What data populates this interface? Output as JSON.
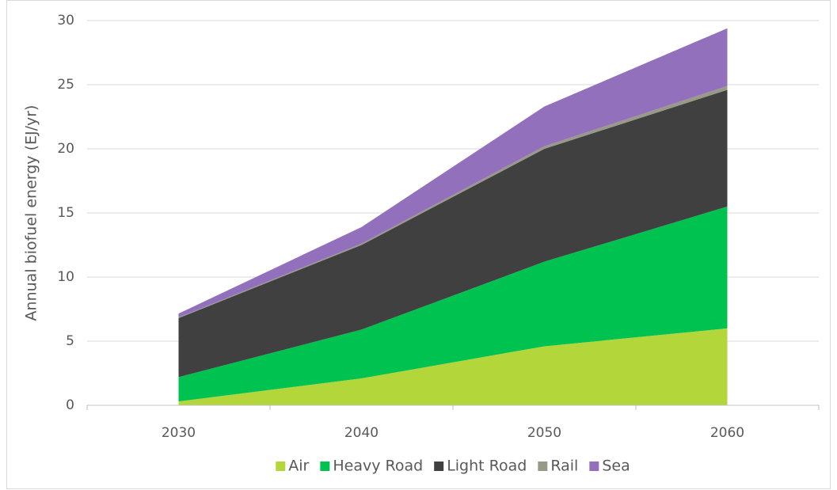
{
  "chart_data": {
    "type": "stacked_area",
    "y_label": "Annual biofuel energy (EJ/yr)",
    "categories": [
      "2030",
      "2040",
      "2050",
      "2060"
    ],
    "series": [
      {
        "name": "Air",
        "color": "#b3d63a",
        "values": [
          0.3,
          2.1,
          4.6,
          6.0
        ]
      },
      {
        "name": "Heavy Road",
        "color": "#00c250",
        "values": [
          1.9,
          3.8,
          6.6,
          9.5
        ]
      },
      {
        "name": "Light Road",
        "color": "#404040",
        "values": [
          4.6,
          6.6,
          8.8,
          9.1
        ]
      },
      {
        "name": "Rail",
        "color": "#999988",
        "values": [
          0.05,
          0.1,
          0.2,
          0.3
        ]
      },
      {
        "name": "Sea",
        "color": "#9370bb",
        "values": [
          0.3,
          1.3,
          3.1,
          4.5
        ]
      }
    ],
    "ylim": [
      0,
      30
    ],
    "yticks": [
      0,
      5,
      10,
      15,
      20,
      25,
      30
    ],
    "grid": true,
    "legend": "bottom"
  }
}
